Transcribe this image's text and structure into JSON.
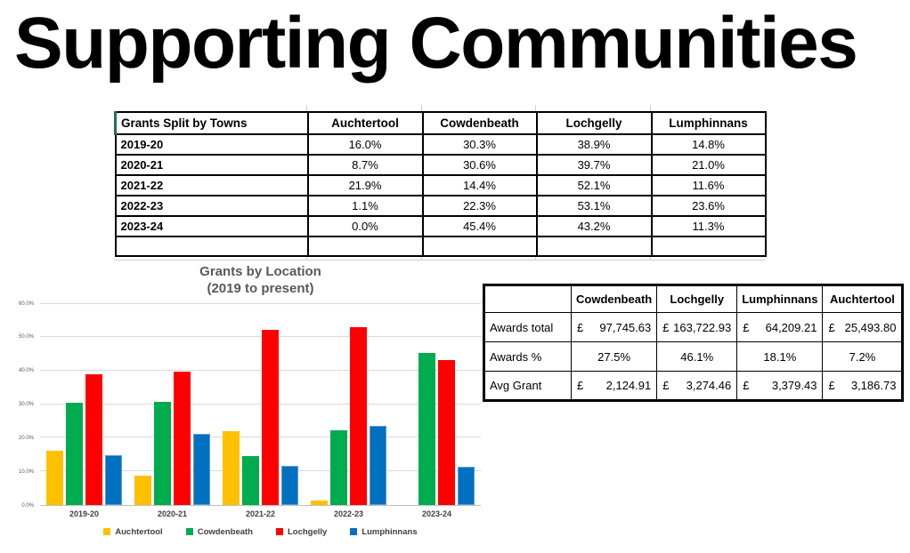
{
  "slide": {
    "title": "Supporting Communities",
    "background": "#ffffff"
  },
  "towns_table": {
    "accent_color": "#217346",
    "columns": [
      "Grants Split by Towns",
      "Auchtertool",
      "Cowdenbeath",
      "Lochgelly",
      "Lumphinnans"
    ],
    "rows": [
      {
        "year": "2019-20",
        "values": [
          "16.0%",
          "30.3%",
          "38.9%",
          "14.8%"
        ]
      },
      {
        "year": "2020-21",
        "values": [
          "8.7%",
          "30.6%",
          "39.7%",
          "21.0%"
        ]
      },
      {
        "year": "2021-22",
        "values": [
          "21.9%",
          "14.4%",
          "52.1%",
          "11.6%"
        ]
      },
      {
        "year": "2022-23",
        "values": [
          "1.1%",
          "22.3%",
          "53.1%",
          "23.6%"
        ]
      },
      {
        "year": "2023-24",
        "values": [
          "0.0%",
          "45.4%",
          "43.2%",
          "11.3%"
        ]
      },
      {
        "year": "",
        "values": [
          "",
          "",
          "",
          ""
        ]
      }
    ]
  },
  "chart_data": {
    "type": "bar",
    "title": "Grants by Location",
    "subtitle": "(2019 to present)",
    "title_color": "#595959",
    "categories": [
      "2019-20",
      "2020-21",
      "2021-22",
      "2022-23",
      "2023-24"
    ],
    "series": [
      {
        "name": "Auchtertool",
        "color": "#FFC000",
        "values": [
          16.0,
          8.7,
          21.9,
          1.1,
          0.0
        ]
      },
      {
        "name": "Cowdenbeath",
        "color": "#00AC4E",
        "values": [
          30.3,
          30.6,
          14.4,
          22.3,
          45.4
        ]
      },
      {
        "name": "Lochgelly",
        "color": "#FF0000",
        "values": [
          38.9,
          39.7,
          52.1,
          53.1,
          43.2
        ]
      },
      {
        "name": "Lumphinnans",
        "color": "#0070C0",
        "border_color": "#5B9BD5",
        "values": [
          14.8,
          21.0,
          11.6,
          23.6,
          11.3
        ]
      }
    ],
    "xlabel": "",
    "ylabel": "",
    "ylim": [
      0,
      60
    ],
    "ytick_labels": [
      "0.0%",
      "10.0%",
      "20.0%",
      "30.0%",
      "40.0%",
      "50.0%",
      "60.0%"
    ],
    "grid": true,
    "legend_position": "bottom"
  },
  "awards_table": {
    "currency_symbol": "£",
    "columns": [
      "",
      "Cowdenbeath",
      "Lochgelly",
      "Lumphinnans",
      "Auchtertool"
    ],
    "rows": [
      {
        "label": "Awards total",
        "format": "currency",
        "values": [
          "97,745.63",
          "163,722.93",
          "64,209.21",
          "25,493.80"
        ]
      },
      {
        "label": "Awards %",
        "format": "percent",
        "values": [
          "27.5%",
          "46.1%",
          "18.1%",
          "7.2%"
        ]
      },
      {
        "label": "Avg Grant",
        "format": "currency",
        "values": [
          "2,124.91",
          "3,274.46",
          "3,379.43",
          "3,186.73"
        ]
      }
    ]
  }
}
